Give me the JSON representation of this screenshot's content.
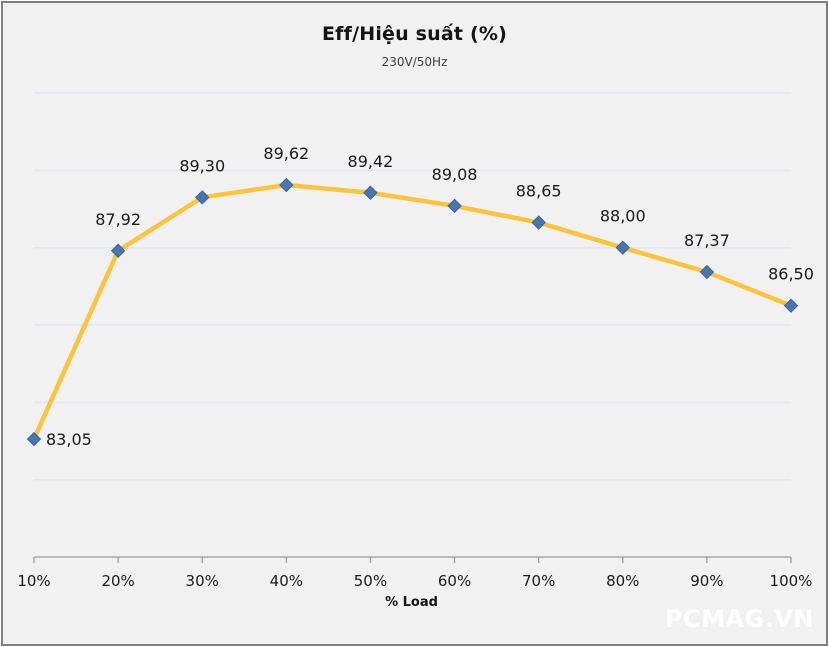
{
  "watermark": "PCMAG.VN",
  "chart_data": {
    "type": "line",
    "title": "Eff/Hiệu suất (%)",
    "subtitle": "230V/50Hz",
    "xlabel": "% Load",
    "ylabel": "",
    "categories": [
      "10%",
      "20%",
      "30%",
      "40%",
      "50%",
      "60%",
      "70%",
      "80%",
      "90%",
      "100%"
    ],
    "series": [
      {
        "name": "Eff/Hiệu suất (%)",
        "values": [
          83.05,
          87.92,
          89.3,
          89.62,
          89.42,
          89.08,
          88.65,
          88.0,
          87.37,
          86.5
        ],
        "point_labels": [
          "83,05",
          "87,92",
          "89,30",
          "89,62",
          "89,42",
          "89,08",
          "88,65",
          "88,00",
          "87,37",
          "86,50"
        ]
      }
    ],
    "ylim": [
      80,
      92
    ],
    "gridline_step": 2,
    "grid": true,
    "legend": "none",
    "colors": {
      "line": "#FBC43C",
      "marker_fill": "#4677B2",
      "marker_stroke": "#3B639F",
      "gridline": "#E2E6EF",
      "axis": "#9B9B9B",
      "label_text": "#1A1A1A",
      "background": "#F1F1F1",
      "frame_border": "#7F7F7F",
      "watermark_text": "#FFFFFF"
    }
  }
}
